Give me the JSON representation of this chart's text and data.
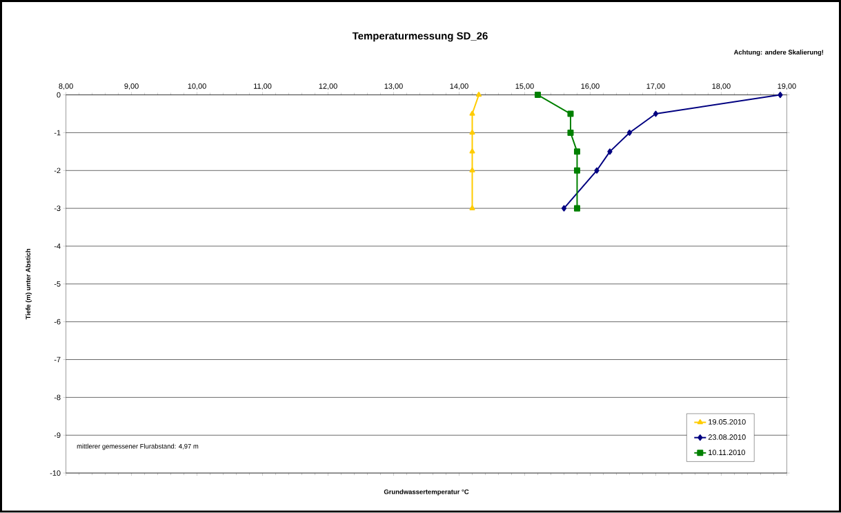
{
  "chart_data": {
    "type": "line",
    "title": "Temperaturmessung SD_26",
    "xlabel": "Grundwassertemperatur °C",
    "ylabel": "Tiefe (m) unter Abstich",
    "annotations": [
      "Achtung: andere Skalierung!",
      "mittlerer gemessener Flurabstand: 4,97 m"
    ],
    "series": [
      {
        "name": "19.05.2010",
        "color": "#ffcc00",
        "marker": "triangle",
        "x": [
          14.3,
          14.2,
          14.2,
          14.2,
          14.2,
          14.2
        ],
        "values": [
          0,
          -0.5,
          -1,
          -1.5,
          -2,
          -3
        ]
      },
      {
        "name": "23.08.2010",
        "color": "#000080",
        "marker": "diamond",
        "x": [
          18.9,
          17.0,
          16.6,
          16.3,
          16.1,
          15.6
        ],
        "values": [
          0,
          -0.5,
          -1,
          -1.5,
          -2,
          -3
        ]
      },
      {
        "name": "10.11.2010",
        "color": "#008000",
        "marker": "square",
        "x": [
          15.2,
          15.7,
          15.7,
          15.8,
          15.8,
          15.8
        ],
        "values": [
          0,
          -0.5,
          -1,
          -1.5,
          -2,
          -3
        ]
      }
    ],
    "xlim": [
      8,
      19
    ],
    "ylim": [
      -10,
      0
    ],
    "xticks": [
      {
        "value": 8,
        "label": "8,00"
      },
      {
        "value": 9,
        "label": "9,00"
      },
      {
        "value": 10,
        "label": "10,00"
      },
      {
        "value": 11,
        "label": "11,00"
      },
      {
        "value": 12,
        "label": "12,00"
      },
      {
        "value": 13,
        "label": "13,00"
      },
      {
        "value": 14,
        "label": "14,00"
      },
      {
        "value": 15,
        "label": "15,00"
      },
      {
        "value": 16,
        "label": "16,00"
      },
      {
        "value": 17,
        "label": "17,00"
      },
      {
        "value": 18,
        "label": "18,00"
      },
      {
        "value": 19,
        "label": "19,00"
      }
    ],
    "yticks": [
      0,
      -1,
      -2,
      -3,
      -4,
      -5,
      -6,
      -7,
      -8,
      -9,
      -10
    ],
    "grid": "y",
    "legend": "bottom right",
    "line_style": "solid"
  }
}
